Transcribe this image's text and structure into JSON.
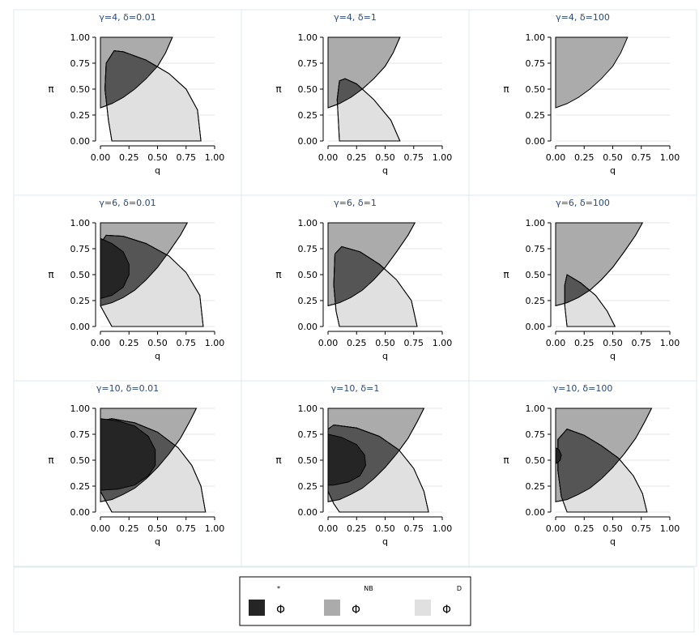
{
  "chart_data": {
    "type": "area",
    "panels": [
      {
        "title": "γ=4, δ=0.01",
        "regions": {
          "NB": {
            "y_low": [
              0.32,
              0.36,
              0.42,
              0.5,
              0.6,
              0.72,
              0.85,
              1.0
            ],
            "y_high": [
              1.0,
              1.0,
              1.0,
              1.0,
              1.0,
              1.0,
              1.0,
              1.0
            ],
            "x": [
              0.0,
              0.1,
              0.2,
              0.3,
              0.4,
              0.5,
              0.57,
              0.63
            ]
          },
          "D": {
            "outline": [
              [
                0.1,
                0.0
              ],
              [
                0.88,
                0.0
              ],
              [
                0.85,
                0.3
              ],
              [
                0.75,
                0.5
              ],
              [
                0.6,
                0.65
              ],
              [
                0.4,
                0.78
              ],
              [
                0.2,
                0.86
              ],
              [
                0.12,
                0.87
              ],
              [
                0.05,
                0.75
              ],
              [
                0.04,
                0.5
              ],
              [
                0.07,
                0.2
              ],
              [
                0.1,
                0.0
              ]
            ]
          },
          "star": null
        }
      },
      {
        "title": "γ=4, δ=1",
        "regions": {
          "NB": {
            "y_low": [
              0.32,
              0.36,
              0.42,
              0.5,
              0.6,
              0.72,
              0.85,
              1.0
            ],
            "y_high": [
              1.0,
              1.0,
              1.0,
              1.0,
              1.0,
              1.0,
              1.0,
              1.0
            ],
            "x": [
              0.0,
              0.1,
              0.2,
              0.3,
              0.4,
              0.5,
              0.57,
              0.63
            ]
          },
          "D": {
            "outline": [
              [
                0.1,
                0.0
              ],
              [
                0.63,
                0.0
              ],
              [
                0.55,
                0.2
              ],
              [
                0.4,
                0.4
              ],
              [
                0.25,
                0.55
              ],
              [
                0.15,
                0.6
              ],
              [
                0.1,
                0.58
              ],
              [
                0.08,
                0.4
              ],
              [
                0.09,
                0.2
              ],
              [
                0.1,
                0.0
              ]
            ]
          },
          "star": null
        }
      },
      {
        "title": "γ=4, δ=100",
        "regions": {
          "NB": {
            "y_low": [
              0.32,
              0.36,
              0.42,
              0.5,
              0.6,
              0.72,
              0.85,
              1.0
            ],
            "y_high": [
              1.0,
              1.0,
              1.0,
              1.0,
              1.0,
              1.0,
              1.0,
              1.0
            ],
            "x": [
              0.0,
              0.1,
              0.2,
              0.3,
              0.4,
              0.5,
              0.57,
              0.63
            ]
          },
          "D": null,
          "star": null
        }
      },
      {
        "title": "γ=6, δ=0.01",
        "regions": {
          "NB": {
            "y_low": [
              0.2,
              0.23,
              0.28,
              0.35,
              0.45,
              0.57,
              0.72,
              0.88,
              1.0
            ],
            "y_high": [
              1.0,
              1.0,
              1.0,
              1.0,
              1.0,
              1.0,
              1.0,
              1.0,
              1.0
            ],
            "x": [
              0.0,
              0.1,
              0.2,
              0.3,
              0.4,
              0.5,
              0.6,
              0.7,
              0.76
            ]
          },
          "D": {
            "outline": [
              [
                0.1,
                0.0
              ],
              [
                0.9,
                0.0
              ],
              [
                0.87,
                0.3
              ],
              [
                0.75,
                0.52
              ],
              [
                0.6,
                0.68
              ],
              [
                0.4,
                0.8
              ],
              [
                0.2,
                0.87
              ],
              [
                0.05,
                0.88
              ],
              [
                0.0,
                0.8
              ],
              [
                0.0,
                0.2
              ],
              [
                0.05,
                0.1
              ],
              [
                0.1,
                0.0
              ]
            ]
          },
          "star": {
            "outline": [
              [
                0.0,
                0.85
              ],
              [
                0.1,
                0.8
              ],
              [
                0.2,
                0.72
              ],
              [
                0.25,
                0.6
              ],
              [
                0.25,
                0.5
              ],
              [
                0.2,
                0.38
              ],
              [
                0.1,
                0.3
              ],
              [
                0.0,
                0.27
              ]
            ]
          }
        }
      },
      {
        "title": "γ=6, δ=1",
        "regions": {
          "NB": {
            "y_low": [
              0.2,
              0.23,
              0.28,
              0.35,
              0.45,
              0.57,
              0.72,
              0.88,
              1.0
            ],
            "y_high": [
              1.0,
              1.0,
              1.0,
              1.0,
              1.0,
              1.0,
              1.0,
              1.0,
              1.0
            ],
            "x": [
              0.0,
              0.1,
              0.2,
              0.3,
              0.4,
              0.5,
              0.6,
              0.7,
              0.76
            ]
          },
          "D": {
            "outline": [
              [
                0.1,
                0.0
              ],
              [
                0.78,
                0.0
              ],
              [
                0.73,
                0.25
              ],
              [
                0.6,
                0.45
              ],
              [
                0.45,
                0.6
              ],
              [
                0.28,
                0.72
              ],
              [
                0.12,
                0.77
              ],
              [
                0.06,
                0.7
              ],
              [
                0.05,
                0.4
              ],
              [
                0.07,
                0.15
              ],
              [
                0.1,
                0.0
              ]
            ]
          },
          "star": null
        }
      },
      {
        "title": "γ=6, δ=100",
        "regions": {
          "NB": {
            "y_low": [
              0.2,
              0.23,
              0.28,
              0.35,
              0.45,
              0.57,
              0.72,
              0.88,
              1.0
            ],
            "y_high": [
              1.0,
              1.0,
              1.0,
              1.0,
              1.0,
              1.0,
              1.0,
              1.0,
              1.0
            ],
            "x": [
              0.0,
              0.1,
              0.2,
              0.3,
              0.4,
              0.5,
              0.6,
              0.7,
              0.76
            ]
          },
          "D": {
            "outline": [
              [
                0.1,
                0.0
              ],
              [
                0.52,
                0.0
              ],
              [
                0.45,
                0.15
              ],
              [
                0.35,
                0.3
              ],
              [
                0.22,
                0.42
              ],
              [
                0.1,
                0.5
              ],
              [
                0.08,
                0.4
              ],
              [
                0.08,
                0.2
              ],
              [
                0.1,
                0.0
              ]
            ]
          },
          "star": null
        }
      },
      {
        "title": "γ=10, δ=0.01",
        "regions": {
          "NB": {
            "y_low": [
              0.1,
              0.12,
              0.17,
              0.23,
              0.32,
              0.43,
              0.56,
              0.71,
              0.87,
              1.0
            ],
            "y_high": [
              1.0,
              1.0,
              1.0,
              1.0,
              1.0,
              1.0,
              1.0,
              1.0,
              1.0,
              1.0
            ],
            "x": [
              0.0,
              0.1,
              0.2,
              0.3,
              0.4,
              0.5,
              0.6,
              0.7,
              0.78,
              0.84
            ]
          },
          "D": {
            "outline": [
              [
                0.1,
                0.0
              ],
              [
                0.92,
                0.0
              ],
              [
                0.88,
                0.25
              ],
              [
                0.8,
                0.45
              ],
              [
                0.68,
                0.62
              ],
              [
                0.5,
                0.77
              ],
              [
                0.3,
                0.86
              ],
              [
                0.1,
                0.9
              ],
              [
                0.0,
                0.88
              ],
              [
                0.0,
                0.2
              ],
              [
                0.05,
                0.1
              ],
              [
                0.1,
                0.0
              ]
            ]
          },
          "star": {
            "outline": [
              [
                0.0,
                0.9
              ],
              [
                0.15,
                0.88
              ],
              [
                0.3,
                0.83
              ],
              [
                0.42,
                0.73
              ],
              [
                0.48,
                0.6
              ],
              [
                0.48,
                0.45
              ],
              [
                0.42,
                0.35
              ],
              [
                0.3,
                0.26
              ],
              [
                0.15,
                0.22
              ],
              [
                0.0,
                0.21
              ]
            ]
          }
        }
      },
      {
        "title": "γ=10, δ=1",
        "regions": {
          "NB": {
            "y_low": [
              0.1,
              0.12,
              0.17,
              0.23,
              0.32,
              0.43,
              0.56,
              0.71,
              0.87,
              1.0
            ],
            "y_high": [
              1.0,
              1.0,
              1.0,
              1.0,
              1.0,
              1.0,
              1.0,
              1.0,
              1.0,
              1.0
            ],
            "x": [
              0.0,
              0.1,
              0.2,
              0.3,
              0.4,
              0.5,
              0.6,
              0.7,
              0.78,
              0.84
            ]
          },
          "D": {
            "outline": [
              [
                0.1,
                0.0
              ],
              [
                0.88,
                0.0
              ],
              [
                0.84,
                0.2
              ],
              [
                0.75,
                0.42
              ],
              [
                0.62,
                0.6
              ],
              [
                0.45,
                0.73
              ],
              [
                0.25,
                0.81
              ],
              [
                0.05,
                0.84
              ],
              [
                0.0,
                0.8
              ],
              [
                0.0,
                0.2
              ],
              [
                0.05,
                0.08
              ],
              [
                0.1,
                0.0
              ]
            ]
          },
          "star": {
            "outline": [
              [
                0.0,
                0.75
              ],
              [
                0.12,
                0.72
              ],
              [
                0.25,
                0.65
              ],
              [
                0.32,
                0.55
              ],
              [
                0.33,
                0.45
              ],
              [
                0.28,
                0.35
              ],
              [
                0.18,
                0.29
              ],
              [
                0.05,
                0.26
              ],
              [
                0.0,
                0.26
              ]
            ]
          }
        }
      },
      {
        "title": "γ=10, δ=100",
        "regions": {
          "NB": {
            "y_low": [
              0.1,
              0.12,
              0.17,
              0.23,
              0.32,
              0.43,
              0.56,
              0.71,
              0.87,
              1.0
            ],
            "y_high": [
              1.0,
              1.0,
              1.0,
              1.0,
              1.0,
              1.0,
              1.0,
              1.0,
              1.0,
              1.0
            ],
            "x": [
              0.0,
              0.1,
              0.2,
              0.3,
              0.4,
              0.5,
              0.6,
              0.7,
              0.78,
              0.84
            ]
          },
          "D": {
            "outline": [
              [
                0.1,
                0.0
              ],
              [
                0.8,
                0.0
              ],
              [
                0.76,
                0.18
              ],
              [
                0.68,
                0.35
              ],
              [
                0.55,
                0.52
              ],
              [
                0.4,
                0.64
              ],
              [
                0.25,
                0.74
              ],
              [
                0.1,
                0.8
              ],
              [
                0.02,
                0.7
              ],
              [
                0.02,
                0.4
              ],
              [
                0.05,
                0.15
              ],
              [
                0.1,
                0.0
              ]
            ]
          },
          "star": {
            "outline": [
              [
                0.0,
                0.62
              ],
              [
                0.03,
                0.6
              ],
              [
                0.05,
                0.55
              ],
              [
                0.04,
                0.5
              ],
              [
                0.01,
                0.47
              ],
              [
                0.0,
                0.47
              ]
            ]
          }
        }
      }
    ],
    "xlabel": "q",
    "ylabel": "π",
    "xlim": [
      0,
      1
    ],
    "ylim": [
      0,
      1
    ],
    "xticks": [
      "0.00",
      "0.25",
      "0.50",
      "0.75",
      "1.00"
    ],
    "yticks": [
      "0.00",
      "0.25",
      "0.50",
      "0.75",
      "1.00"
    ],
    "grid": true,
    "legend": {
      "placement": "bottom-center",
      "items": [
        {
          "key": "star",
          "symbol": "Φ",
          "sup": "*",
          "color": "#252525"
        },
        {
          "key": "NB",
          "symbol": "Φ",
          "sup": "NB",
          "color": "#ababab"
        },
        {
          "key": "D",
          "symbol": "Φ",
          "sup": "D",
          "color": "#e0e0e0"
        }
      ]
    },
    "colors": {
      "star": "#252525",
      "overlap": "#555555",
      "NB": "#ababab",
      "D": "#e0e0e0",
      "title": "#2b4a7a",
      "panel_border": "#dfe8ee",
      "grid": "#e6e6e6"
    }
  }
}
